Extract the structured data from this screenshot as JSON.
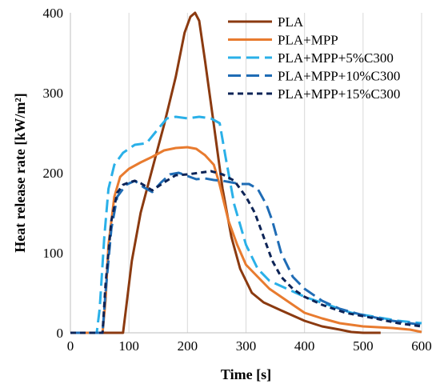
{
  "chart_data": {
    "type": "line",
    "title": "",
    "xlabel": "Time [s]",
    "ylabel": "Heat release rate [kW/m²]",
    "xlim": [
      0,
      600
    ],
    "ylim": [
      0,
      400
    ],
    "xticks": [
      0,
      100,
      200,
      300,
      400,
      500,
      600
    ],
    "yticks": [
      0,
      100,
      200,
      300,
      400
    ],
    "grid": "vertical",
    "legend_position": "top-right",
    "series": [
      {
        "name": "PLA",
        "color": "#8B3A10",
        "dash": "solid",
        "points": [
          [
            0,
            0
          ],
          [
            90,
            0
          ],
          [
            95,
            30
          ],
          [
            105,
            90
          ],
          [
            120,
            150
          ],
          [
            140,
            205
          ],
          [
            160,
            260
          ],
          [
            180,
            320
          ],
          [
            195,
            375
          ],
          [
            205,
            395
          ],
          [
            213,
            400
          ],
          [
            220,
            390
          ],
          [
            230,
            340
          ],
          [
            245,
            260
          ],
          [
            260,
            180
          ],
          [
            275,
            120
          ],
          [
            290,
            80
          ],
          [
            310,
            50
          ],
          [
            330,
            38
          ],
          [
            360,
            28
          ],
          [
            400,
            15
          ],
          [
            430,
            8
          ],
          [
            460,
            4
          ],
          [
            480,
            1
          ],
          [
            500,
            0
          ],
          [
            530,
            0
          ]
        ]
      },
      {
        "name": "PLA+MPP",
        "color": "#E87B2F",
        "dash": "solid",
        "points": [
          [
            0,
            0
          ],
          [
            55,
            0
          ],
          [
            60,
            40
          ],
          [
            65,
            110
          ],
          [
            75,
            170
          ],
          [
            85,
            195
          ],
          [
            100,
            205
          ],
          [
            120,
            213
          ],
          [
            140,
            220
          ],
          [
            160,
            228
          ],
          [
            180,
            231
          ],
          [
            200,
            232
          ],
          [
            215,
            230
          ],
          [
            230,
            222
          ],
          [
            245,
            210
          ],
          [
            255,
            185
          ],
          [
            270,
            140
          ],
          [
            285,
            110
          ],
          [
            300,
            85
          ],
          [
            320,
            70
          ],
          [
            340,
            55
          ],
          [
            370,
            40
          ],
          [
            400,
            25
          ],
          [
            430,
            18
          ],
          [
            460,
            12
          ],
          [
            500,
            8
          ],
          [
            550,
            6
          ],
          [
            580,
            4
          ],
          [
            600,
            1
          ]
        ]
      },
      {
        "name": "PLA+MPP+5%C300",
        "color": "#2AB0E8",
        "dash": "long",
        "points": [
          [
            0,
            0
          ],
          [
            45,
            0
          ],
          [
            50,
            30
          ],
          [
            58,
            120
          ],
          [
            65,
            180
          ],
          [
            75,
            210
          ],
          [
            90,
            225
          ],
          [
            110,
            235
          ],
          [
            130,
            237
          ],
          [
            150,
            255
          ],
          [
            165,
            268
          ],
          [
            180,
            270
          ],
          [
            200,
            268
          ],
          [
            220,
            270
          ],
          [
            240,
            268
          ],
          [
            255,
            262
          ],
          [
            265,
            220
          ],
          [
            280,
            160
          ],
          [
            300,
            110
          ],
          [
            320,
            80
          ],
          [
            340,
            65
          ],
          [
            370,
            55
          ],
          [
            400,
            45
          ],
          [
            440,
            35
          ],
          [
            480,
            25
          ],
          [
            520,
            20
          ],
          [
            560,
            15
          ],
          [
            600,
            12
          ]
        ]
      },
      {
        "name": "PLA+MPP+10%C300",
        "color": "#1F6CB5",
        "dash": "long",
        "points": [
          [
            0,
            0
          ],
          [
            55,
            0
          ],
          [
            60,
            50
          ],
          [
            70,
            130
          ],
          [
            80,
            170
          ],
          [
            95,
            185
          ],
          [
            110,
            190
          ],
          [
            125,
            182
          ],
          [
            140,
            176
          ],
          [
            155,
            188
          ],
          [
            170,
            198
          ],
          [
            185,
            200
          ],
          [
            200,
            196
          ],
          [
            215,
            192
          ],
          [
            230,
            193
          ],
          [
            245,
            191
          ],
          [
            260,
            190
          ],
          [
            275,
            188
          ],
          [
            290,
            186
          ],
          [
            305,
            186
          ],
          [
            320,
            180
          ],
          [
            335,
            160
          ],
          [
            345,
            140
          ],
          [
            360,
            100
          ],
          [
            380,
            70
          ],
          [
            400,
            55
          ],
          [
            430,
            40
          ],
          [
            460,
            30
          ],
          [
            500,
            22
          ],
          [
            550,
            15
          ],
          [
            600,
            10
          ]
        ]
      },
      {
        "name": "PLA+MPP+15%C300",
        "color": "#0D2457",
        "dash": "short",
        "points": [
          [
            0,
            0
          ],
          [
            55,
            0
          ],
          [
            60,
            60
          ],
          [
            70,
            140
          ],
          [
            80,
            175
          ],
          [
            90,
            185
          ],
          [
            100,
            188
          ],
          [
            110,
            190
          ],
          [
            120,
            187
          ],
          [
            140,
            178
          ],
          [
            160,
            188
          ],
          [
            180,
            197
          ],
          [
            200,
            198
          ],
          [
            220,
            200
          ],
          [
            240,
            202
          ],
          [
            260,
            198
          ],
          [
            280,
            190
          ],
          [
            290,
            180
          ],
          [
            300,
            170
          ],
          [
            315,
            150
          ],
          [
            330,
            120
          ],
          [
            345,
            90
          ],
          [
            360,
            70
          ],
          [
            380,
            55
          ],
          [
            400,
            45
          ],
          [
            430,
            35
          ],
          [
            470,
            25
          ],
          [
            520,
            18
          ],
          [
            560,
            12
          ],
          [
            600,
            8
          ]
        ]
      }
    ]
  }
}
